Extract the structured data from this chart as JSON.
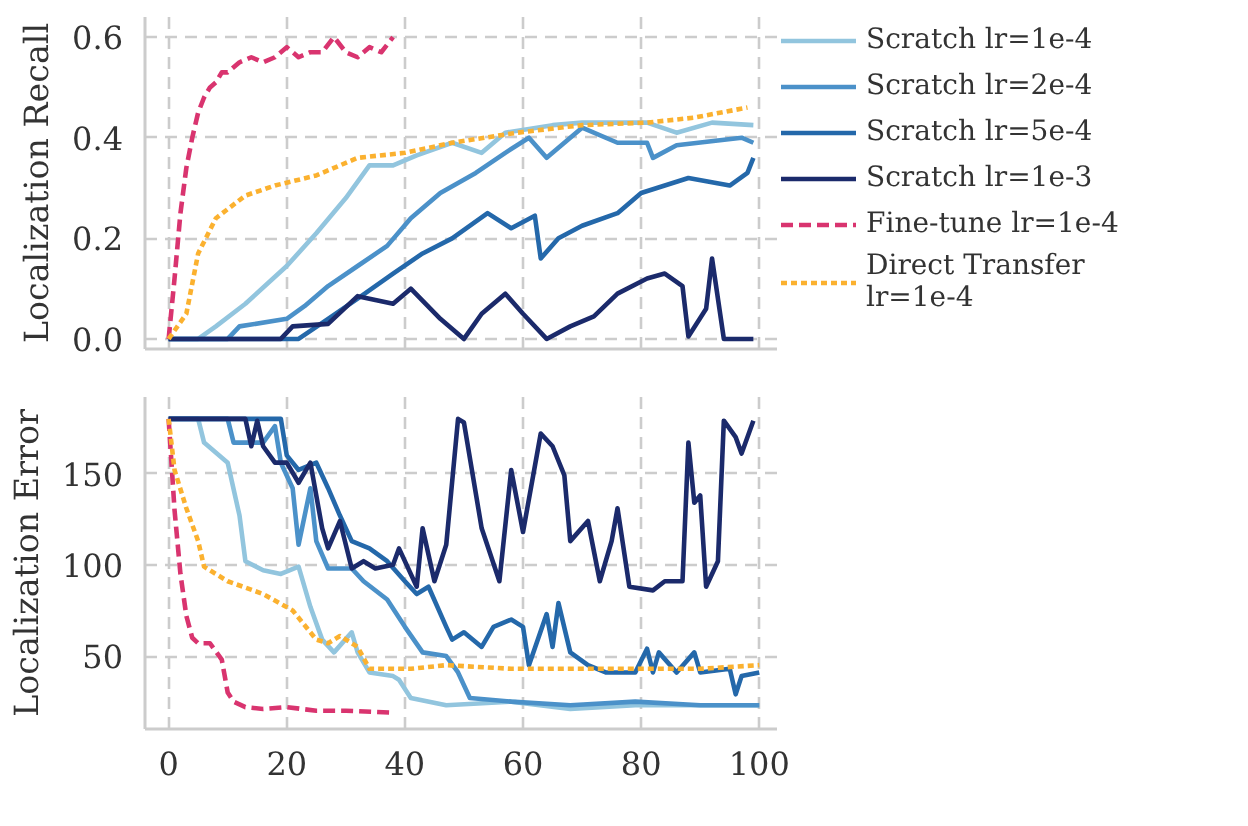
{
  "chart_data": [
    {
      "type": "line",
      "ylabel": "Localization Recall",
      "xlim": [
        -4,
        103
      ],
      "xticks": [
        0,
        20,
        40,
        60,
        80,
        100
      ],
      "ylim": [
        -0.02,
        0.64
      ],
      "yticks": [
        {
          "value": 0,
          "label": "0.0"
        },
        {
          "value": 0.2,
          "label": "0.2"
        },
        {
          "value": 0.4,
          "label": "0.4"
        },
        {
          "value": 0.6,
          "label": "0.6"
        }
      ],
      "grid": true,
      "legend": "right",
      "tick_labels": "y",
      "series": [
        {
          "name": "Scratch lr=1e-4",
          "color": "#92c5de",
          "line_style": "solid",
          "x": [
            0,
            5,
            8,
            13,
            20,
            25,
            30,
            34,
            38,
            42,
            48,
            53,
            57,
            65,
            70,
            81,
            86,
            92,
            99
          ],
          "values": [
            0,
            0,
            0.025,
            0.07,
            0.145,
            0.21,
            0.28,
            0.345,
            0.345,
            0.365,
            0.39,
            0.37,
            0.41,
            0.425,
            0.43,
            0.43,
            0.41,
            0.43,
            0.425
          ]
        },
        {
          "name": "Scratch lr=2e-4",
          "color": "#4b91c9",
          "line_style": "solid",
          "x": [
            0,
            10,
            12,
            20,
            23,
            27,
            32,
            37,
            41,
            46,
            52,
            57,
            61,
            64,
            70,
            76,
            81,
            82,
            86,
            97,
            99
          ],
          "values": [
            0,
            0,
            0.025,
            0.04,
            0.065,
            0.105,
            0.145,
            0.185,
            0.24,
            0.29,
            0.33,
            0.37,
            0.4,
            0.36,
            0.42,
            0.39,
            0.39,
            0.36,
            0.385,
            0.4,
            0.39
          ]
        },
        {
          "name": "Scratch lr=5e-4",
          "color": "#2468aa",
          "line_style": "solid",
          "x": [
            0,
            22,
            27,
            32,
            38,
            43,
            48,
            54,
            58,
            62,
            63,
            66,
            70,
            76,
            80,
            84,
            88,
            95,
            98,
            99
          ],
          "values": [
            0,
            0,
            0.04,
            0.08,
            0.13,
            0.17,
            0.2,
            0.25,
            0.22,
            0.245,
            0.16,
            0.2,
            0.225,
            0.25,
            0.29,
            0.305,
            0.32,
            0.305,
            0.33,
            0.36
          ]
        },
        {
          "name": "Scratch lr=1e-3",
          "color": "#1b2a6b",
          "line_style": "solid",
          "x": [
            0,
            19,
            21,
            27,
            32,
            38,
            41,
            46,
            50,
            53,
            57,
            60,
            64,
            68,
            72,
            76,
            81,
            84,
            87,
            88,
            91,
            92,
            94,
            99
          ],
          "values": [
            0,
            0,
            0.025,
            0.03,
            0.085,
            0.07,
            0.1,
            0.04,
            0,
            0.05,
            0.09,
            0.05,
            0,
            0.025,
            0.045,
            0.09,
            0.12,
            0.13,
            0.105,
            0.005,
            0.06,
            0.16,
            0,
            0
          ]
        },
        {
          "name": "Fine-tune lr=1e-4",
          "color": "#d9346f",
          "line_style": "dashed",
          "x": [
            0,
            1,
            2,
            3,
            4,
            5,
            6,
            7,
            8,
            9,
            10,
            12,
            14,
            16,
            18,
            20,
            22,
            24,
            26,
            28,
            30,
            32,
            34,
            36,
            38
          ],
          "values": [
            0,
            0.12,
            0.25,
            0.34,
            0.4,
            0.45,
            0.48,
            0.5,
            0.51,
            0.53,
            0.53,
            0.55,
            0.56,
            0.55,
            0.56,
            0.58,
            0.56,
            0.57,
            0.57,
            0.6,
            0.57,
            0.56,
            0.58,
            0.57,
            0.6
          ]
        },
        {
          "name": "Direct Transfer\nlr=1e-4",
          "color": "#fbb12f",
          "line_style": "dotted",
          "x": [
            0,
            3,
            5,
            8,
            13,
            18,
            25,
            32,
            40,
            48,
            59,
            70,
            81,
            89,
            98
          ],
          "values": [
            0,
            0.05,
            0.17,
            0.24,
            0.285,
            0.305,
            0.325,
            0.36,
            0.37,
            0.39,
            0.41,
            0.425,
            0.43,
            0.44,
            0.46
          ]
        }
      ]
    },
    {
      "type": "line",
      "ylabel": "Localization Error",
      "xlim": [
        -4,
        103
      ],
      "xticks": [
        0,
        20,
        40,
        60,
        80,
        100
      ],
      "ylim": [
        10,
        192
      ],
      "yticks": [
        50,
        100,
        150
      ],
      "grid": true,
      "series": [
        {
          "color": "#92c5de",
          "line_style": "solid",
          "x": [
            0,
            5,
            6,
            10,
            12,
            13,
            16,
            19,
            22,
            24,
            26,
            28,
            31,
            32,
            34,
            38,
            39,
            41,
            47,
            58,
            68,
            79,
            90,
            100
          ],
          "values": [
            180,
            180,
            167,
            156,
            127,
            102,
            97,
            95,
            99,
            77,
            59,
            52,
            63,
            52,
            41,
            39,
            37,
            27,
            23,
            25,
            21,
            23,
            23,
            23
          ]
        },
        {
          "color": "#4b91c9",
          "line_style": "solid",
          "x": [
            0,
            10,
            11,
            16,
            18,
            19,
            21,
            22,
            24,
            25,
            27,
            31,
            33,
            37,
            40,
            43,
            47,
            49,
            51,
            58,
            68,
            79,
            90,
            100
          ],
          "values": [
            180,
            180,
            167,
            167,
            176,
            156,
            142,
            111,
            142,
            113,
            98,
            98,
            91,
            81,
            66,
            52,
            50,
            41,
            27,
            25,
            23,
            25,
            23,
            23
          ]
        },
        {
          "color": "#2468aa",
          "line_style": "solid",
          "x": [
            0,
            19,
            20,
            22,
            25,
            27,
            29,
            31,
            34,
            37,
            40,
            42,
            44,
            47,
            48,
            50,
            53,
            55,
            58,
            60,
            61,
            64,
            65,
            66,
            68,
            71,
            74,
            79,
            81,
            82,
            83,
            86,
            89,
            90,
            95,
            96,
            97,
            100
          ],
          "values": [
            180,
            180,
            160,
            152,
            156,
            142,
            127,
            113,
            109,
            102,
            91,
            84,
            88,
            66,
            59,
            63,
            55,
            66,
            70,
            66,
            45,
            73,
            55,
            79,
            52,
            45,
            41,
            41,
            54,
            41,
            52,
            41,
            52,
            41,
            43,
            29,
            39,
            41
          ]
        },
        {
          "color": "#1b2a6b",
          "line_style": "solid",
          "x": [
            0,
            13,
            14,
            15,
            16,
            18,
            20,
            22,
            24,
            26,
            27,
            29,
            31,
            33,
            35,
            38,
            39,
            42,
            43,
            45,
            47,
            49,
            50,
            53,
            56,
            58,
            60,
            63,
            65,
            67,
            68,
            71,
            73,
            75,
            76,
            78,
            82,
            84,
            87,
            88,
            89,
            90,
            91,
            93,
            94,
            96,
            97,
            99
          ],
          "values": [
            180,
            180,
            165,
            179,
            165,
            156,
            156,
            145,
            156,
            120,
            109,
            124,
            98,
            102,
            98,
            100,
            109,
            88,
            120,
            91,
            111,
            180,
            178,
            120,
            91,
            152,
            118,
            172,
            165,
            149,
            113,
            124,
            91,
            113,
            131,
            88,
            86,
            91,
            91,
            167,
            134,
            138,
            88,
            102,
            179,
            170,
            161,
            179
          ]
        },
        {
          "color": "#d9346f",
          "line_style": "dashed",
          "x": [
            0,
            1,
            2,
            3,
            4,
            5,
            7,
            9,
            10,
            11,
            13,
            16,
            20,
            25,
            30,
            38
          ],
          "values": [
            180,
            130,
            95,
            72,
            60,
            57,
            57,
            48,
            30,
            25,
            22,
            21,
            22,
            20,
            20,
            19
          ]
        },
        {
          "color": "#fbb12f",
          "line_style": "dotted",
          "x": [
            0,
            1,
            3,
            5,
            6,
            10,
            16,
            21,
            25,
            27,
            29,
            32,
            34,
            41,
            47,
            58,
            68,
            79,
            90,
            100
          ],
          "values": [
            180,
            152,
            131,
            113,
            99,
            91,
            84,
            75,
            59,
            57,
            61,
            55,
            43,
            43,
            45,
            43,
            43,
            43,
            43,
            45
          ]
        }
      ]
    }
  ]
}
